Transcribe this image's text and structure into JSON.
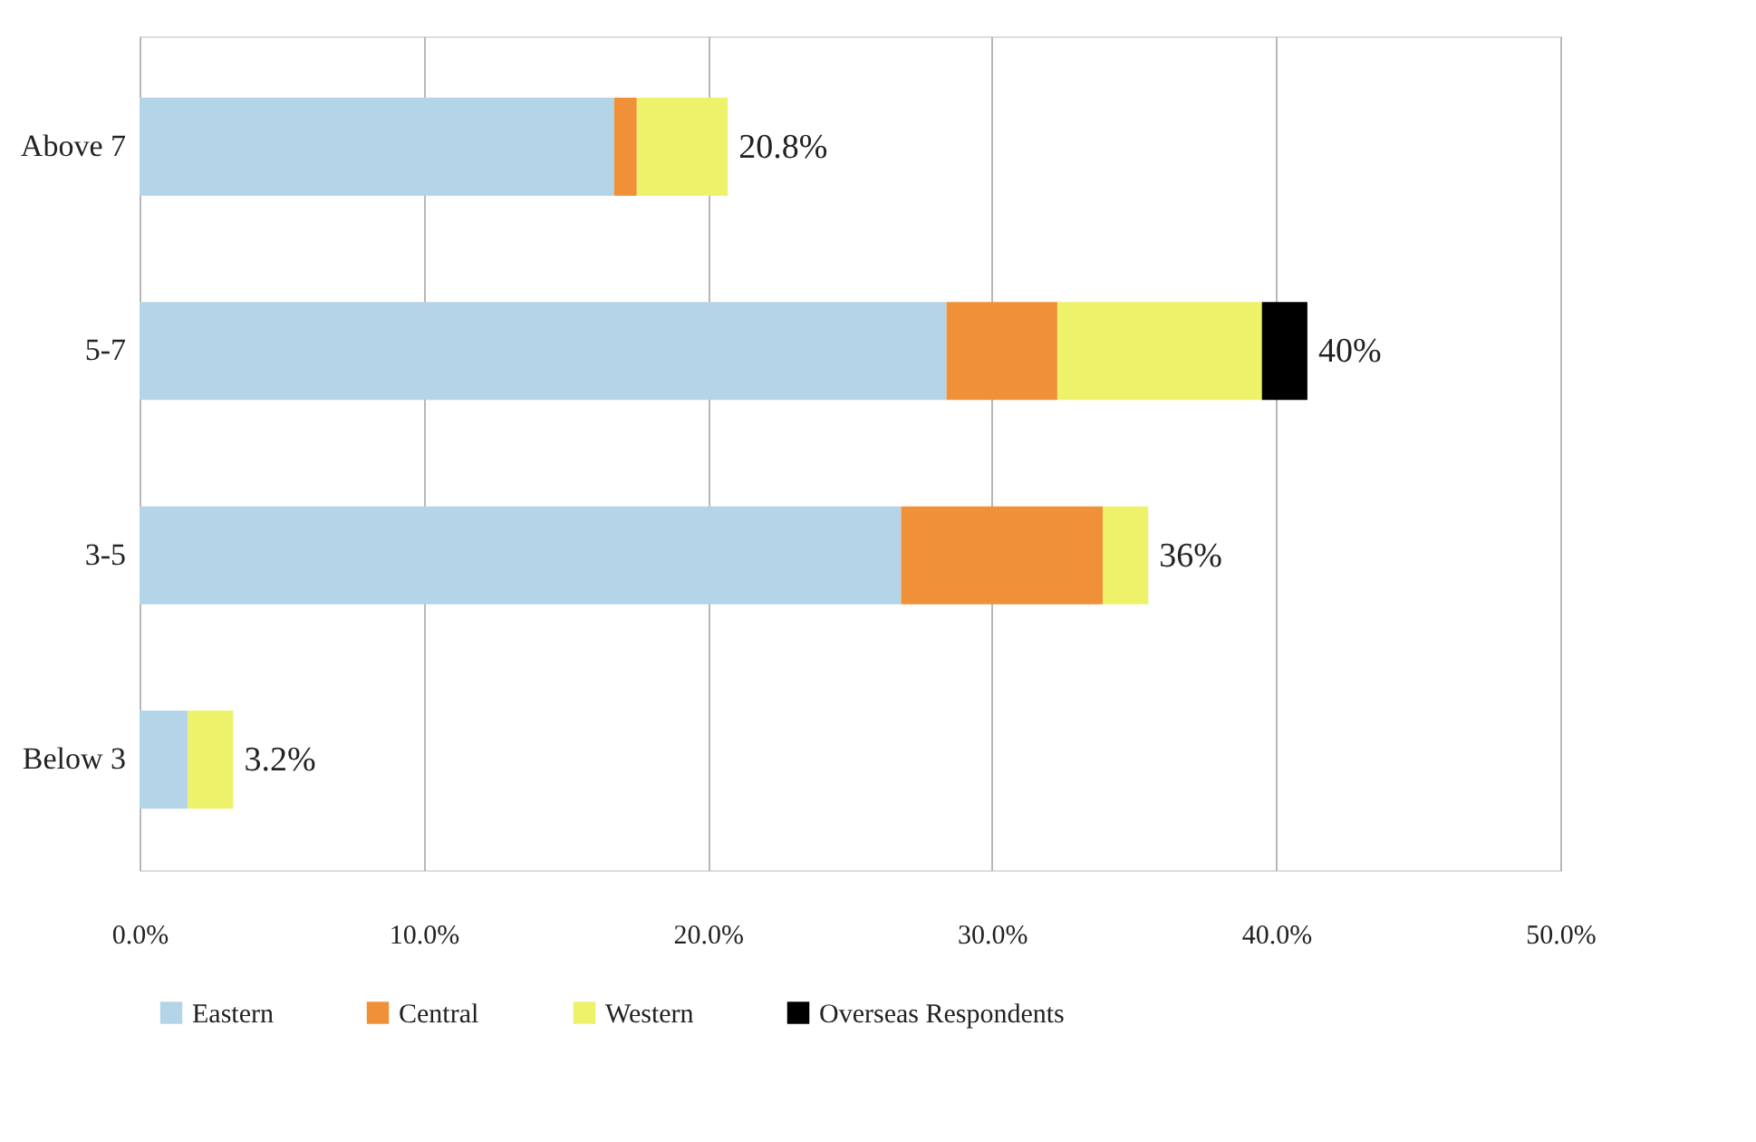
{
  "chart_data": {
    "type": "bar",
    "orientation": "horizontal",
    "stacked": true,
    "categories": [
      "Above 7",
      "5-7",
      "3-5",
      "Below 3"
    ],
    "series": [
      {
        "name": "Eastern",
        "color": "#b4d4e8",
        "values": [
          16.7,
          28.4,
          26.8,
          1.7
        ]
      },
      {
        "name": "Central",
        "color": "#f0913a",
        "values": [
          0.8,
          3.9,
          7.1,
          null
        ]
      },
      {
        "name": "Western",
        "color": "#eef26a",
        "values": [
          3.2,
          7.2,
          1.6,
          1.6
        ]
      },
      {
        "name": "Overseas Respondents",
        "color": "#000000",
        "values": [
          null,
          1.6,
          null,
          null
        ]
      }
    ],
    "totals": [
      "20.8%",
      "40%",
      "36%",
      "3.2%"
    ],
    "xlim": [
      0,
      50
    ],
    "xticks": [
      {
        "value": 0,
        "label": "0.0%"
      },
      {
        "value": 10,
        "label": "10.0%"
      },
      {
        "value": 20,
        "label": "20.0%"
      },
      {
        "value": 30,
        "label": "30.0%"
      },
      {
        "value": 40,
        "label": "40.0%"
      },
      {
        "value": 50,
        "label": "50.0%"
      }
    ],
    "grid": "x",
    "legend": "bottom"
  }
}
